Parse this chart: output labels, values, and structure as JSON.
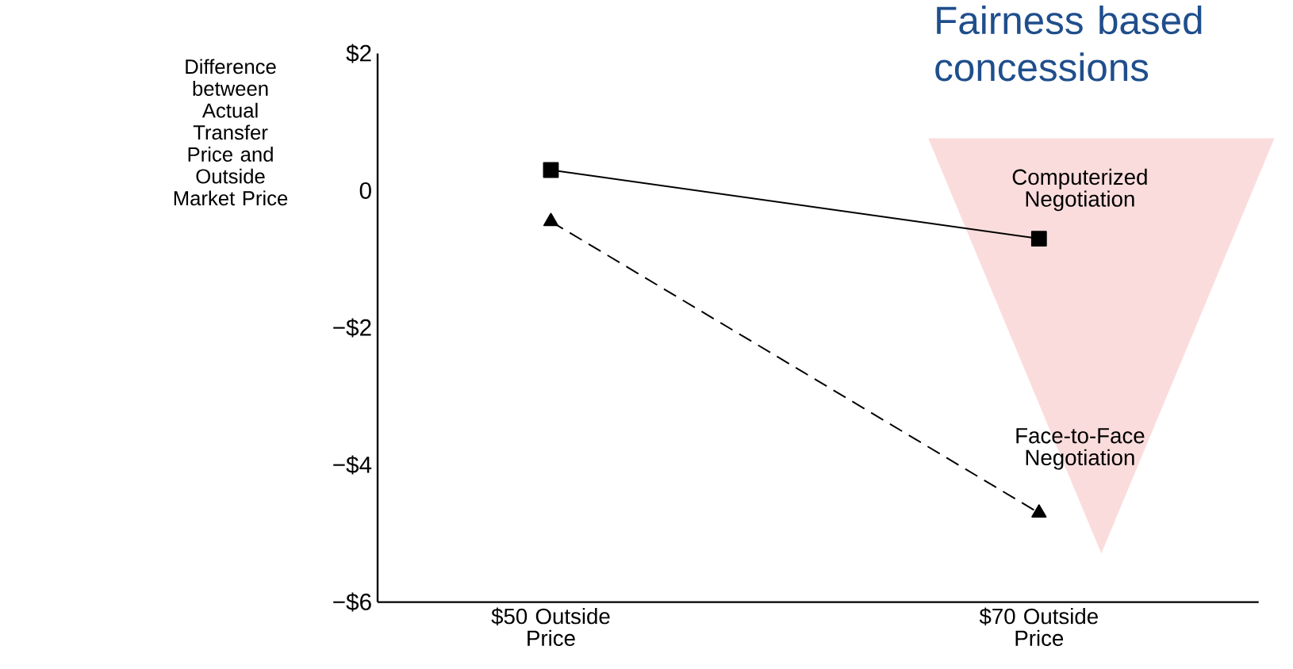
{
  "chart_data": {
    "type": "line",
    "ylabel": "Difference between Actual Transfer Price and Outside Market Price",
    "categories": [
      "$50 Outside Price",
      "$70 Outside Price"
    ],
    "series": [
      {
        "name": "Computerized Negotiation",
        "color": "#000000",
        "values": [
          0.3,
          -0.7
        ],
        "marker": "square",
        "line_style": "solid"
      },
      {
        "name": "Face-to-Face Negotiation",
        "color": "#000000",
        "values": [
          -0.45,
          -4.7
        ],
        "marker": "triangle",
        "line_style": "dashed"
      }
    ],
    "ylim": [
      -6,
      2
    ],
    "yticks": [
      {
        "value": -6,
        "label": "−$6"
      },
      {
        "value": -4,
        "label": "−$4"
      },
      {
        "value": -2,
        "label": "−$2"
      },
      0,
      {
        "value": 2,
        "label": "$2"
      }
    ],
    "annotations": [
      "Fairness based concessions"
    ]
  }
}
